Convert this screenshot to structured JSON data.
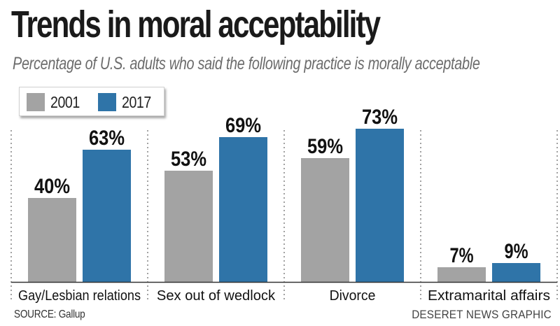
{
  "title": "Trends in moral acceptability",
  "subtitle": "Percentage of U.S. adults who said the following practice is morally acceptable",
  "source": "SOURCE: Gallup",
  "credit": "DESERET NEWS GRAPHIC",
  "colors": {
    "series_2001": "#a3a3a3",
    "series_2017": "#2f74a8",
    "divider": "#8a8a8a",
    "axis": "#333333"
  },
  "chart_data": {
    "type": "bar",
    "title": "Trends in moral acceptability",
    "subtitle": "Percentage of U.S. adults who said the following practice is morally acceptable",
    "categories": [
      "Gay/Lesbian relations",
      "Sex out of wedlock",
      "Divorce",
      "Extramarital affairs"
    ],
    "series": [
      {
        "name": "2001",
        "values": [
          40,
          53,
          59,
          7
        ],
        "labels": [
          "40%",
          "53%",
          "59%",
          "7%"
        ]
      },
      {
        "name": "2017",
        "values": [
          63,
          69,
          73,
          9
        ],
        "labels": [
          "63%",
          "69%",
          "73%",
          "9%"
        ]
      }
    ],
    "ylim": [
      0,
      80
    ],
    "grid": false,
    "legend": "top-left",
    "xlabel": "",
    "ylabel": ""
  }
}
